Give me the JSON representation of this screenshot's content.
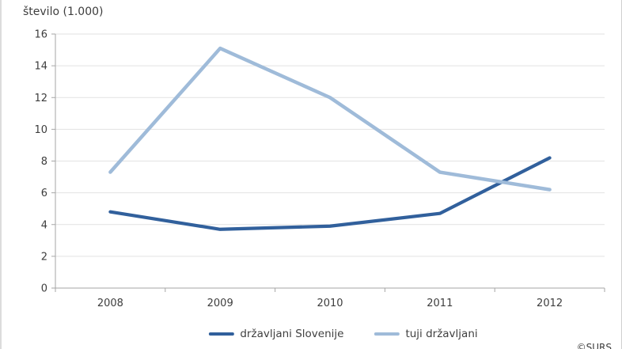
{
  "page": {
    "background": "#ffffff",
    "border_color": "#d9d9d9"
  },
  "chart_data": {
    "type": "line",
    "title": "število (1.000)",
    "x": [
      "2008",
      "2009",
      "2010",
      "2011",
      "2012"
    ],
    "series": [
      {
        "name": "državljani Slovenije",
        "color": "#31609c",
        "values": [
          4.8,
          3.7,
          3.9,
          4.7,
          8.2
        ]
      },
      {
        "name": "tuji državljani",
        "color": "#9fbbd9",
        "values": [
          7.3,
          15.1,
          12.0,
          7.3,
          6.2
        ]
      }
    ],
    "ylabel": "število (1.000)",
    "xlabel": "",
    "ylim": [
      0,
      16
    ],
    "ytick_step": 2,
    "grid": true,
    "legend_position": "bottom",
    "grid_color": "#e2e2e2",
    "axis_color": "#a6a6a6",
    "label_color": "#3d3d3d"
  },
  "watermark": "©SURS"
}
